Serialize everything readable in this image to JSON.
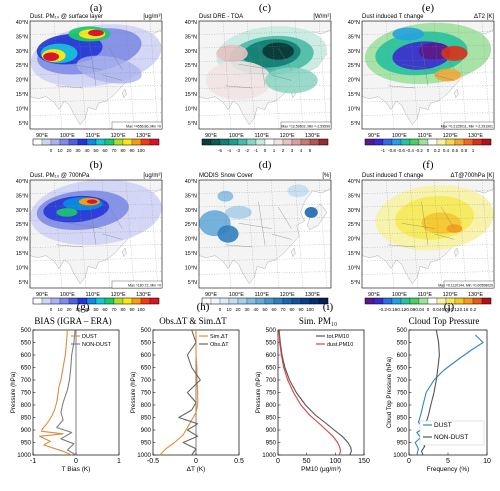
{
  "colors": {
    "dust": "#d98c3f",
    "nondust": "#7f7f7f",
    "sim": "#e68a2e",
    "obs": "#666666",
    "totpm": "#555555",
    "dustpm": "#d94040",
    "ct_dust": "#2f86c4",
    "ct_nondust": "#555555",
    "land": "#f4f4f4",
    "ocean": "#ffffff"
  },
  "maps": [
    {
      "key": "a",
      "letter": "(a)",
      "title": "Dust. PM₁₀ @ surface layer",
      "unit": "[ug/m³]",
      "lon_labels": [
        "90°E",
        "100°E",
        "110°E",
        "120°E",
        "130°E"
      ],
      "lat_labels": [
        "40°N",
        "35°N",
        "30°N",
        "25°N",
        "20°N",
        "15°N",
        "10°N",
        "5°N"
      ],
      "stats": "Max =4556.86, Min =0",
      "colorbar": {
        "ticks": [
          "0",
          "10",
          "20",
          "30",
          "40",
          "50",
          "60",
          "70",
          "80",
          "90",
          "100"
        ],
        "colors": [
          "#ffffff",
          "#cfd4f5",
          "#aab3ef",
          "#7d8ce6",
          "#4f60e0",
          "#2236d6",
          "#0b8be2",
          "#14c8d8",
          "#1cc86e",
          "#a8e02a",
          "#f6e61a",
          "#f79a16",
          "#ee3b16",
          "#d81528"
        ]
      }
    },
    {
      "key": "c",
      "letter": "(c)",
      "title": "Dust DRE - TOA",
      "unit": "[W/m²]",
      "lon_labels": [
        "90°E",
        "100°E",
        "110°E",
        "120°E",
        "130°E"
      ],
      "lat_labels": [
        "40°N",
        "35°N",
        "30°N",
        "25°N",
        "20°N",
        "15°N",
        "10°N",
        "5°N"
      ],
      "stats": "Max =12.59602, Min =-2.59599",
      "colorbar": {
        "ticks": [
          "-5",
          "-4",
          "-3",
          "-2",
          "-1",
          "0",
          "1",
          "2",
          "3",
          "4",
          "5"
        ],
        "colors": [
          "#0a3d3a",
          "#0e5a55",
          "#138075",
          "#1aa08d",
          "#48bba4",
          "#88d4c2",
          "#c5ebe1",
          "#ffffff",
          "#f2e3e3",
          "#e6c2c2",
          "#d99f9f",
          "#c97878",
          "#b25454",
          "#932f2f"
        ]
      }
    },
    {
      "key": "e",
      "letter": "(e)",
      "title": "Dust induced T change",
      "unit": "ΔT2 [K]",
      "lon_labels": [
        "90°E",
        "100°E",
        "110°E",
        "120°E",
        "130°E"
      ],
      "lat_labels": [
        "40°N",
        "35°N",
        "30°N",
        "25°N",
        "20°N",
        "15°N",
        "10°N",
        "5°N"
      ],
      "stats": "Max =0.2125011, Min =-2.291901",
      "colorbar": {
        "ticks": [
          "-1",
          "-0.8",
          "-0.6",
          "-0.4",
          "-0.2",
          "0",
          "0.2",
          "0.4",
          "0.6",
          "0.8",
          "1"
        ],
        "colors": [
          "#5a1a8c",
          "#3b2ad1",
          "#2f6ce6",
          "#22a2e0",
          "#27c2a0",
          "#4fce5f",
          "#a2e0a2",
          "#ffffff",
          "#f7f2a8",
          "#f5d84e",
          "#f6a530",
          "#ee6c20",
          "#dc3018",
          "#b3101a"
        ]
      }
    },
    {
      "key": "b",
      "letter": "(b)",
      "title": "Dust. PM₁₀ @ 700hPa",
      "unit": "[ug/m³]",
      "lon_labels": [
        "90°E",
        "100°E",
        "110°E",
        "120°E",
        "130°E"
      ],
      "lat_labels": [
        "40°N",
        "35°N",
        "30°N",
        "25°N",
        "20°N",
        "15°N",
        "10°N",
        "5°N"
      ],
      "stats": "Max =180.72, Min =0",
      "colorbar": {
        "ticks": [
          "0",
          "10",
          "20",
          "30",
          "40",
          "50",
          "60",
          "70",
          "80",
          "90",
          "100"
        ],
        "colors": [
          "#ffffff",
          "#cfd4f5",
          "#aab3ef",
          "#7d8ce6",
          "#4f60e0",
          "#2236d6",
          "#0b8be2",
          "#14c8d8",
          "#1cc86e",
          "#a8e02a",
          "#f6e61a",
          "#f79a16",
          "#ee3b16",
          "#d81528"
        ]
      }
    },
    {
      "key": "d",
      "letter": "(d)",
      "title": "MODIS Snow Cover",
      "unit": "[%]",
      "lon_labels": [
        "90°E",
        "100°E",
        "110°E",
        "120°E",
        "130°E"
      ],
      "lat_labels": [
        "40°N",
        "35°N",
        "30°N",
        "25°N",
        "20°N",
        "15°N",
        "10°N",
        "5°N"
      ],
      "stats": "",
      "colorbar": {
        "ticks": [
          "0",
          "10",
          "20",
          "30",
          "40",
          "50",
          "60",
          "70",
          "80",
          "90",
          "100"
        ],
        "colors": [
          "#ffffff",
          "#f0f6fb",
          "#dbeaf5",
          "#c5def0",
          "#a8cfe9",
          "#88bde1",
          "#66aad8",
          "#4895cd",
          "#2f7fc0",
          "#1e68ae",
          "#12529a",
          "#0b3f86",
          "#072e70",
          "#041f5a"
        ]
      }
    },
    {
      "key": "f",
      "letter": "(f)",
      "title": "Dust induced T change",
      "unit": "ΔT@700hPa [K]",
      "lon_labels": [
        "90°E",
        "100°E",
        "110°E",
        "120°E",
        "130°E"
      ],
      "lat_labels": [
        "40°N",
        "35°N",
        "30°N",
        "25°N",
        "20°N",
        "15°N",
        "10°N",
        "5°N"
      ],
      "stats": "Max =0.1110144, Min =0.00508029",
      "colorbar": {
        "ticks": [
          "-0.2",
          "-0.16",
          "-0.12",
          "-0.08",
          "-0.04",
          "0",
          "0.04",
          "0.08",
          "0.12",
          "0.16",
          "0.2"
        ],
        "colors": [
          "#5a1a8c",
          "#3b2ad1",
          "#2f6ce6",
          "#22a2e0",
          "#27c2a0",
          "#4fce5f",
          "#a2e0a2",
          "#ffffff",
          "#f7f2a8",
          "#f5ea5a",
          "#f6c630",
          "#f39a20",
          "#e45a18",
          "#b3101a"
        ]
      }
    }
  ],
  "chart_data": [
    {
      "type": "line",
      "letter": "(g)",
      "title": "BIAS (IGRA – ERA)",
      "xlabel": "T Bias (K)",
      "ylabel": "Pressure (hPa)",
      "xlim": [
        -1,
        1
      ],
      "ylim": [
        1000,
        500
      ],
      "xticks": [
        "-1",
        "0",
        "1"
      ],
      "yticks": [
        "500",
        "550",
        "600",
        "650",
        "700",
        "750",
        "800",
        "850",
        "900",
        "950",
        "1000"
      ],
      "legend": "top-right",
      "series": [
        {
          "name": "DUST",
          "color": "#d98c3f",
          "x": [
            -0.2,
            -0.22,
            -0.25,
            -0.3,
            -0.35,
            -0.4,
            -0.42,
            -0.45,
            -0.5,
            -0.55,
            -0.62,
            -0.7,
            -0.78,
            -0.8,
            -0.3,
            -0.85,
            -0.6,
            -0.75,
            -0.3,
            -0.1
          ],
          "y": [
            500,
            550,
            600,
            650,
            700,
            730,
            760,
            790,
            820,
            840,
            860,
            880,
            895,
            905,
            915,
            925,
            945,
            960,
            985,
            1000
          ]
        },
        {
          "name": "NON-DUST",
          "color": "#7f7f7f",
          "x": [
            -0.02,
            -0.05,
            -0.1,
            -0.12,
            -0.15,
            -0.2,
            -0.3,
            -0.35,
            -0.3,
            -0.45,
            -0.1,
            -0.35,
            -0.05,
            -0.2,
            0.0
          ],
          "y": [
            500,
            550,
            600,
            650,
            700,
            740,
            790,
            830,
            860,
            890,
            910,
            935,
            955,
            980,
            1000
          ]
        }
      ]
    },
    {
      "type": "line",
      "letter": "(h)",
      "title": "Obs.ΔT & Sim.ΔT",
      "xlabel": "ΔT (K)",
      "ylabel": "Pressure (hPa)",
      "xlim": [
        -0.5,
        0.5
      ],
      "ylim": [
        1000,
        500
      ],
      "xticks": [
        "-0.5",
        "0",
        "0.5"
      ],
      "yticks": [
        "500",
        "550",
        "600",
        "650",
        "700",
        "750",
        "800",
        "850",
        "900",
        "950",
        "1000"
      ],
      "legend": "top-right",
      "series": [
        {
          "name": "Sim.ΔT",
          "color": "#e68a2e",
          "x": [
            0.0,
            0.0,
            0.0,
            0.01,
            0.01,
            0.02,
            0.02,
            0.0,
            -0.05,
            -0.1,
            -0.15,
            -0.25,
            -0.35,
            -0.42
          ],
          "y": [
            500,
            550,
            600,
            650,
            700,
            750,
            800,
            830,
            860,
            890,
            920,
            950,
            975,
            1000
          ]
        },
        {
          "name": "Obs.ΔT",
          "color": "#666666",
          "x": [
            -0.05,
            0.0,
            -0.1,
            -0.05,
            0.05,
            -0.1,
            0.0,
            -0.05,
            -0.2,
            0.02,
            -0.1,
            0.02,
            -0.15,
            0.0,
            -0.05
          ],
          "y": [
            500,
            550,
            600,
            650,
            700,
            750,
            790,
            820,
            850,
            875,
            900,
            925,
            950,
            975,
            1000
          ]
        }
      ]
    },
    {
      "type": "line",
      "letter": "(i)",
      "title": "Sim. PM₁₀",
      "xlabel": "PM10 (μg/m³)",
      "ylabel": "Pressure (hPa)",
      "xlim": [
        0,
        150
      ],
      "ylim": [
        1000,
        500
      ],
      "xticks": [
        "0",
        "50",
        "100",
        "150"
      ],
      "yticks": [
        "500",
        "550",
        "600",
        "650",
        "700",
        "750",
        "800",
        "850",
        "900",
        "950",
        "1000"
      ],
      "legend": "top-right",
      "series": [
        {
          "name": "tot.PM10",
          "color": "#555555",
          "x": [
            2,
            4,
            7,
            12,
            20,
            32,
            48,
            65,
            82,
            98,
            112,
            122,
            127,
            128,
            125
          ],
          "y": [
            500,
            550,
            600,
            650,
            700,
            750,
            800,
            840,
            870,
            900,
            925,
            950,
            970,
            985,
            1000
          ]
        },
        {
          "name": "dust.PM10",
          "color": "#d94040",
          "x": [
            2,
            3,
            6,
            10,
            17,
            27,
            40,
            55,
            70,
            84,
            96,
            104,
            108,
            109,
            107
          ],
          "y": [
            500,
            550,
            600,
            650,
            700,
            750,
            800,
            840,
            870,
            900,
            925,
            950,
            970,
            985,
            1000
          ]
        }
      ]
    },
    {
      "type": "line",
      "letter": "(j)",
      "title": "Cloud Top Pressure",
      "xlabel": "Frequency (%)",
      "ylabel": "Cloud Top Pressure (hPa)",
      "xlim": [
        0,
        10
      ],
      "ylim": [
        1000,
        500
      ],
      "xticks": [
        "0",
        "5",
        "10"
      ],
      "yticks": [
        "500",
        "550",
        "600",
        "650",
        "700",
        "750",
        "800",
        "850",
        "900",
        "950",
        "1000"
      ],
      "legend": "bottom-right",
      "series": [
        {
          "name": "DUST",
          "color": "#2f86c4",
          "x": [
            8.5,
            9.5,
            8.0,
            6.2,
            4.5,
            3.2,
            2.2,
            1.8,
            1.5,
            1.2,
            2.0,
            1.0,
            1.5,
            0.8,
            1.2,
            1.0
          ],
          "y": [
            520,
            550,
            580,
            620,
            660,
            700,
            750,
            800,
            840,
            870,
            890,
            910,
            930,
            950,
            975,
            1000
          ]
        },
        {
          "name": "NON-DUST",
          "color": "#555555",
          "x": [
            3.5,
            3.8,
            3.9,
            3.7,
            3.5,
            3.2,
            2.8,
            2.5,
            2.2,
            2.0,
            2.2,
            1.8,
            2.0,
            1.6,
            1.8
          ],
          "y": [
            500,
            550,
            600,
            650,
            700,
            750,
            800,
            840,
            870,
            900,
            920,
            945,
            965,
            985,
            1000
          ]
        }
      ]
    }
  ]
}
